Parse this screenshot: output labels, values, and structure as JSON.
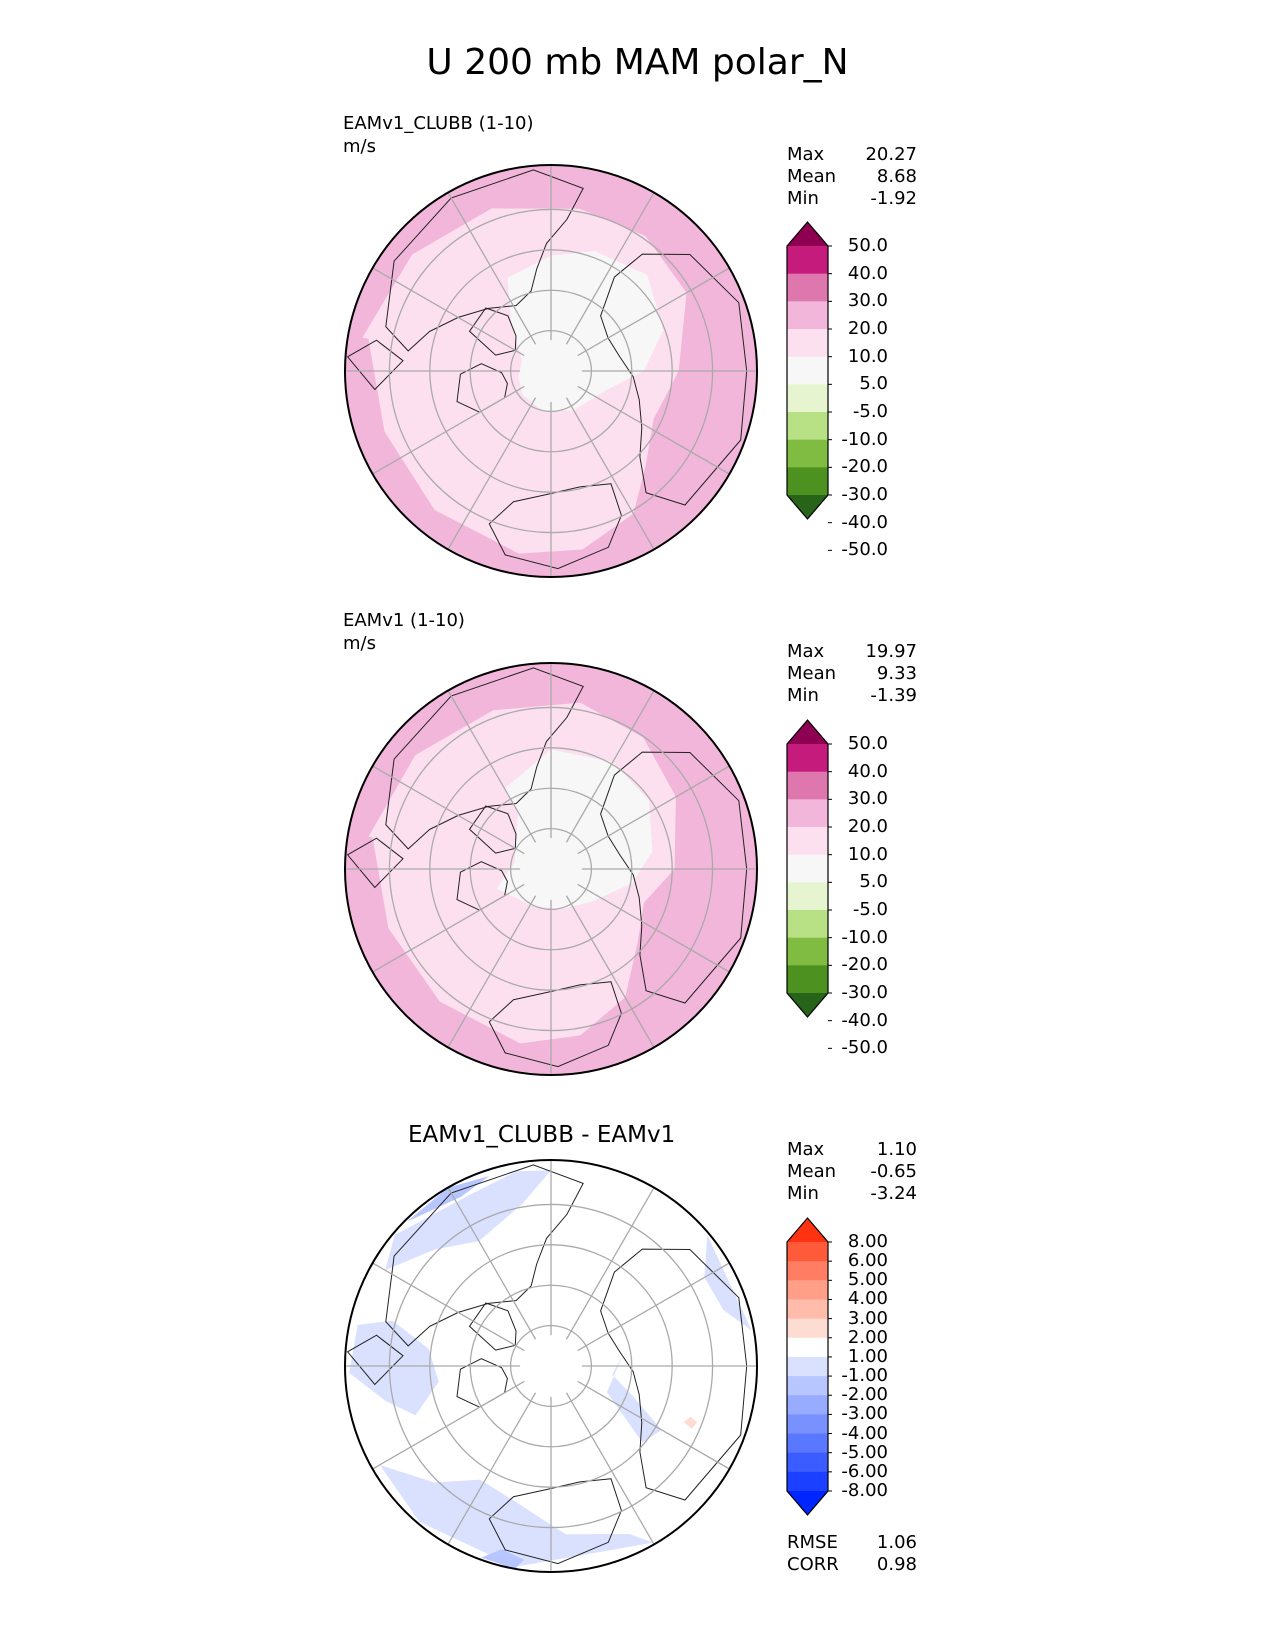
{
  "title": "U 200 mb MAM polar_N",
  "panels": [
    {
      "name": "EAMv1_CLUBB (1-10)",
      "units": "m/s",
      "stats": [
        {
          "label": "Max",
          "value": "20.27"
        },
        {
          "label": "Mean",
          "value": "8.68"
        },
        {
          "label": "Min",
          "value": "-1.92"
        }
      ],
      "colorbar": {
        "ticks": [
          "50.0",
          "40.0",
          "30.0",
          "20.0",
          "10.0",
          "5.0",
          "-5.0",
          "-10.0",
          "-20.0",
          "-30.0",
          "-40.0",
          "-50.0"
        ],
        "colors": [
          "#8e0152",
          "#c51b7d",
          "#de77ae",
          "#f1b6da",
          "#fde0ef",
          "#f7f7f7",
          "#e6f5d0",
          "#b8e186",
          "#7fbc41",
          "#4d9221",
          "#276419"
        ]
      }
    },
    {
      "name": "EAMv1 (1-10)",
      "units": "m/s",
      "stats": [
        {
          "label": "Max",
          "value": "19.97"
        },
        {
          "label": "Mean",
          "value": "9.33"
        },
        {
          "label": "Min",
          "value": "-1.39"
        }
      ],
      "colorbar": {
        "ticks": [
          "50.0",
          "40.0",
          "30.0",
          "20.0",
          "10.0",
          "5.0",
          "-5.0",
          "-10.0",
          "-20.0",
          "-30.0",
          "-40.0",
          "-50.0"
        ],
        "colors": [
          "#8e0152",
          "#c51b7d",
          "#de77ae",
          "#f1b6da",
          "#fde0ef",
          "#f7f7f7",
          "#e6f5d0",
          "#b8e186",
          "#7fbc41",
          "#4d9221",
          "#276419"
        ]
      }
    },
    {
      "name": "EAMv1_CLUBB - EAMv1",
      "units": "",
      "stats": [
        {
          "label": "Max",
          "value": "1.10"
        },
        {
          "label": "Mean",
          "value": "-0.65"
        },
        {
          "label": "Min",
          "value": "-3.24"
        }
      ],
      "metrics": [
        {
          "label": "RMSE",
          "value": "1.06"
        },
        {
          "label": "CORR",
          "value": "0.98"
        }
      ],
      "colorbar": {
        "ticks": [
          "8.00",
          "6.00",
          "5.00",
          "4.00",
          "3.00",
          "2.00",
          "1.00",
          "-1.00",
          "-2.00",
          "-3.00",
          "-4.00",
          "-5.00",
          "-6.00",
          "-8.00"
        ],
        "colors": [
          "#ff3311",
          "#ff5a3a",
          "#ff7d62",
          "#ff9f88",
          "#ffbcab",
          "#ffdcd2",
          "#ffffff",
          "#d9e1ff",
          "#b8c6ff",
          "#98acff",
          "#7891ff",
          "#5a77ff",
          "#3b5cff",
          "#1c40ff",
          "#0026ff"
        ]
      }
    }
  ],
  "chart_data": [
    {
      "type": "heatmap",
      "projection": "north polar stereographic",
      "title": "EAMv1_CLUBB (1-10)",
      "units": "m/s",
      "stats": {
        "max": 20.27,
        "mean": 8.68,
        "min": -1.92
      },
      "levels": [
        -50,
        -40,
        -30,
        -20,
        -10,
        -5,
        5,
        10,
        20,
        30,
        40,
        50
      ],
      "extend": "both",
      "dominant_range": [
        5,
        20
      ]
    },
    {
      "type": "heatmap",
      "projection": "north polar stereographic",
      "title": "EAMv1 (1-10)",
      "units": "m/s",
      "stats": {
        "max": 19.97,
        "mean": 9.33,
        "min": -1.39
      },
      "levels": [
        -50,
        -40,
        -30,
        -20,
        -10,
        -5,
        5,
        10,
        20,
        30,
        40,
        50
      ],
      "extend": "both",
      "dominant_range": [
        5,
        20
      ]
    },
    {
      "type": "heatmap",
      "projection": "north polar stereographic",
      "title": "EAMv1_CLUBB - EAMv1",
      "stats": {
        "max": 1.1,
        "mean": -0.65,
        "min": -3.24,
        "rmse": 1.06,
        "corr": 0.98
      },
      "levels": [
        -8,
        -6,
        -5,
        -4,
        -3,
        -2,
        -1,
        1,
        2,
        3,
        4,
        5,
        6,
        8
      ],
      "extend": "both",
      "dominant_range": [
        -3,
        1
      ]
    }
  ]
}
